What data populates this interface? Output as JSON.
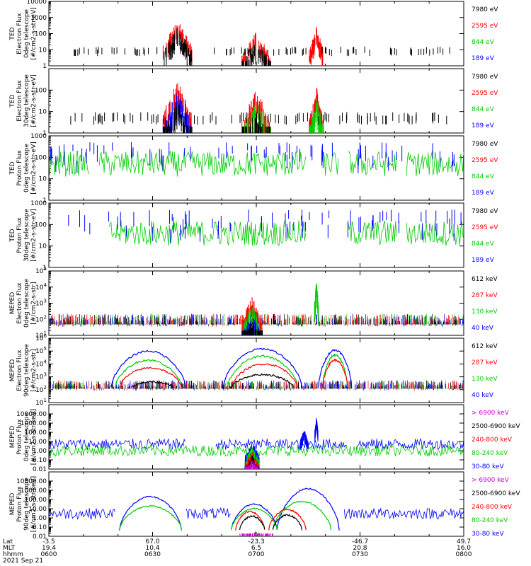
{
  "chart_data": {
    "type": "line",
    "x_tick_labels": {
      "row_labels": [
        "Lat",
        "MLT",
        "hhmm"
      ],
      "lat": [
        "-3.5",
        "67.0",
        "-23.3",
        "-46.7",
        "49.7"
      ],
      "mlt": [
        "19.4",
        "10.4",
        "6.5",
        "20.8",
        "16.0"
      ],
      "hhmm": [
        "0600",
        "0630",
        "0700",
        "0730",
        "0800"
      ]
    },
    "date_label": "2021 Sep 21",
    "panels": [
      {
        "ylabel": [
          "TED",
          "Electron Flux",
          "0deg telescope",
          "[#/cm2-s-str-eV]"
        ],
        "yscale": "log",
        "ylim": [
          1,
          10000
        ],
        "y_tick_labels": [
          "1",
          "10",
          "100",
          "1000",
          "10000"
        ],
        "legend": [
          {
            "label": "7980 eV",
            "color": "#000000"
          },
          {
            "label": "2595 eV",
            "color": "#ff0000"
          },
          {
            "label": "844 eV",
            "color": "#00cc00"
          },
          {
            "label": "189 eV",
            "color": "#0000ff"
          }
        ],
        "bursts": [
          {
            "center": 0.31,
            "width": 0.07,
            "peak": 800,
            "colors": [
              "#ff0000",
              "#000000"
            ]
          },
          {
            "center": 0.5,
            "width": 0.07,
            "peak": 150,
            "colors": [
              "#ff0000",
              "#000000"
            ]
          },
          {
            "center": 0.645,
            "width": 0.035,
            "peak": 300,
            "colors": [
              "#ff0000"
            ]
          }
        ],
        "sparse_color": "#000000",
        "sparse_level": 10
      },
      {
        "ylabel": [
          "TED",
          "Electron Flux",
          "30deg telescope",
          "[#/cm2-s-str-eV]"
        ],
        "yscale": "log",
        "ylim": [
          1,
          1000
        ],
        "y_tick_labels": [
          "1",
          "10",
          "100"
        ],
        "legend": [
          {
            "label": "7980 eV",
            "color": "#000000"
          },
          {
            "label": "2595 eV",
            "color": "#ff0000"
          },
          {
            "label": "844 eV",
            "color": "#00cc00"
          },
          {
            "label": "189 eV",
            "color": "#0000ff"
          }
        ],
        "bursts": [
          {
            "center": 0.31,
            "width": 0.07,
            "peak": 300,
            "colors": [
              "#ff0000",
              "#0000ff",
              "#000000"
            ]
          },
          {
            "center": 0.5,
            "width": 0.07,
            "peak": 120,
            "colors": [
              "#ff0000",
              "#00cc00",
              "#000000"
            ]
          },
          {
            "center": 0.645,
            "width": 0.035,
            "peak": 150,
            "colors": [
              "#ff0000",
              "#00cc00"
            ]
          }
        ],
        "sparse_color": "#000000",
        "sparse_level": 6
      },
      {
        "ylabel": [
          "TED",
          "Proton Flux",
          "0deg telescope",
          "[#/cm2-s-str-eV]"
        ],
        "yscale": "log",
        "ylim": [
          1,
          1000
        ],
        "y_tick_labels": [
          "1",
          "10",
          "100",
          "1000"
        ],
        "legend": [
          {
            "label": "7980 eV",
            "color": "#000000"
          },
          {
            "label": "2595 eV",
            "color": "#ff0000"
          },
          {
            "label": "844 eV",
            "color": "#00cc00"
          },
          {
            "label": "189 eV",
            "color": "#0000ff"
          }
        ],
        "continuous": [
          {
            "color": "#00cc00",
            "level": 50,
            "gaps": [
              [
                0.1,
                0.12
              ],
              [
                0.62,
                0.66
              ],
              [
                0.7,
                0.72
              ],
              [
                0.84,
                0.86
              ]
            ]
          },
          {
            "color": "#0000ff",
            "level": 150,
            "sparse": true
          }
        ]
      },
      {
        "ylabel": [
          "TED",
          "Proton Flux",
          "30deg telescope",
          "[#/cm2-s-str-eV]"
        ],
        "yscale": "log",
        "ylim": [
          1,
          1000
        ],
        "y_tick_labels": [
          "1",
          "10",
          "100",
          "1000"
        ],
        "legend": [
          {
            "label": "7980 eV",
            "color": "#000000"
          },
          {
            "label": "2595 eV",
            "color": "#ff0000"
          },
          {
            "label": "844 eV",
            "color": "#00cc00"
          },
          {
            "label": "189 eV",
            "color": "#0000ff"
          }
        ],
        "continuous": [
          {
            "color": "#00cc00",
            "level": 40,
            "gaps": [
              [
                0.0,
                0.145
              ],
              [
                0.62,
                0.72
              ],
              [
                0.84,
                0.86
              ]
            ]
          },
          {
            "color": "#0000ff",
            "level": 150,
            "sparse": true
          }
        ]
      },
      {
        "ylabel": [
          "MEPED",
          "Electron Flux",
          "0deg telescope",
          "[#/cm2-s-str]"
        ],
        "yscale": "log",
        "ylim": [
          10,
          100000
        ],
        "y_tick_labels": [
          "10^1",
          "10^2",
          "10^3",
          "10^4",
          "10^5"
        ],
        "legend": [
          {
            "label": "612 keV",
            "color": "#000000"
          },
          {
            "label": "287 keV",
            "color": "#ff0000"
          },
          {
            "label": "130 keV",
            "color": "#00cc00"
          },
          {
            "label": "40 keV",
            "color": "#0000ff"
          }
        ],
        "noise_floor": 60,
        "bursts": [
          {
            "center": 0.49,
            "width": 0.05,
            "peak": 3000,
            "colors": [
              "#ff0000",
              "#00cc00",
              "#0000ff",
              "#000000"
            ]
          },
          {
            "center": 0.645,
            "width": 0.01,
            "peak": 30000,
            "colors": [
              "#00cc00"
            ]
          }
        ]
      },
      {
        "ylabel": [
          "MEPED",
          "Electron Flux",
          "90deg telescope",
          "[#/cm2-s-str]"
        ],
        "yscale": "log",
        "ylim": [
          10,
          1000000
        ],
        "y_tick_labels": [
          "10^1",
          "10^2",
          "10^3",
          "10^4",
          "10^5",
          "10^6"
        ],
        "legend": [
          {
            "label": "612 keV",
            "color": "#000000"
          },
          {
            "label": "287 keV",
            "color": "#ff0000"
          },
          {
            "label": "130 keV",
            "color": "#00cc00"
          },
          {
            "label": "40 keV",
            "color": "#0000ff"
          }
        ],
        "noise_floor": 150,
        "humps": [
          {
            "color": "#0000ff",
            "ranges": [
              [
                0.15,
                0.33,
                100000
              ],
              [
                0.42,
                0.61,
                150000
              ],
              [
                0.65,
                0.73,
                120000
              ]
            ]
          },
          {
            "color": "#00cc00",
            "ranges": [
              [
                0.16,
                0.32,
                20000
              ],
              [
                0.43,
                0.6,
                40000
              ],
              [
                0.66,
                0.72,
                50000
              ]
            ]
          },
          {
            "color": "#ff0000",
            "ranges": [
              [
                0.17,
                0.32,
                5000
              ],
              [
                0.44,
                0.6,
                10000
              ],
              [
                0.66,
                0.72,
                20000
              ]
            ]
          },
          {
            "color": "#000000",
            "ranges": [
              [
                0.2,
                0.3,
                400
              ],
              [
                0.44,
                0.59,
                1500
              ]
            ]
          }
        ]
      },
      {
        "ylabel": [
          "MEPED",
          "Proton Flux",
          "0deg telescope",
          "[#/cm2-s-str-keV]"
        ],
        "yscale": "log",
        "ylim": [
          0.01,
          100000
        ],
        "y_tick_labels": [
          "0.01",
          "0.10",
          "1.00",
          "10.00",
          "100.00",
          "1000.00",
          "10000.00"
        ],
        "legend": [
          {
            "label": "> 6900 keV",
            "color": "#cc00cc"
          },
          {
            "label": "2500-6900 keV",
            "color": "#000000"
          },
          {
            "label": "240-800 keV",
            "color": "#ff0000"
          },
          {
            "label": "80-240 keV",
            "color": "#00cc00"
          },
          {
            "label": "30-80 keV",
            "color": "#0000ff"
          }
        ],
        "continuous": [
          {
            "color": "#0000ff",
            "level": 5,
            "gaps": [
              [
                0.33,
                0.4
              ],
              [
                0.72,
                0.74
              ]
            ]
          },
          {
            "color": "#00cc00",
            "level": 1,
            "gaps": []
          }
        ],
        "bursts": [
          {
            "center": 0.49,
            "width": 0.035,
            "peak": 10,
            "colors": [
              "#0000ff",
              "#00cc00",
              "#ff0000",
              "#000000",
              "#cc00cc"
            ]
          },
          {
            "center": 0.615,
            "width": 0.02,
            "peak": 300,
            "colors": [
              "#0000ff"
            ]
          },
          {
            "center": 0.645,
            "width": 0.008,
            "peak": 5000,
            "colors": [
              "#0000ff"
            ]
          }
        ]
      },
      {
        "ylabel": [
          "MEPED",
          "Proton Flux",
          "90deg telescope",
          "[#/cm2-s-str-keV]"
        ],
        "yscale": "log",
        "ylim": [
          0.01,
          100000
        ],
        "y_tick_labels": [
          "0.01",
          "0.10",
          "1.00",
          "10.00",
          "100.00",
          "1000.00",
          "10000.00"
        ],
        "legend": [
          {
            "label": "> 6900 keV",
            "color": "#cc00cc"
          },
          {
            "label": "2500-6900 keV",
            "color": "#000000"
          },
          {
            "label": "240-800 keV",
            "color": "#ff0000"
          },
          {
            "label": "80-240 keV",
            "color": "#00cc00"
          },
          {
            "label": "30-80 keV",
            "color": "#0000ff"
          }
        ],
        "humps": [
          {
            "color": "#0000ff",
            "ranges": [
              [
                0.17,
                0.32,
                200
              ],
              [
                0.44,
                0.55,
                30
              ],
              [
                0.55,
                0.7,
                1500
              ]
            ]
          },
          {
            "color": "#00cc00",
            "ranges": [
              [
                0.17,
                0.32,
                20
              ],
              [
                0.44,
                0.55,
                10
              ],
              [
                0.54,
                0.68,
                60
              ]
            ]
          },
          {
            "color": "#ff0000",
            "ranges": [
              [
                0.45,
                0.52,
                5
              ],
              [
                0.53,
                0.62,
                8
              ]
            ]
          },
          {
            "color": "#000000",
            "ranges": [
              [
                0.46,
                0.52,
                1.5
              ],
              [
                0.54,
                0.61,
                2
              ]
            ]
          }
        ],
        "continuous": [
          {
            "color": "#0000ff",
            "level": 3,
            "gaps": [
              [
                0.16,
                0.33
              ],
              [
                0.44,
                0.71
              ]
            ]
          }
        ],
        "bursts": [
          {
            "center": 0.5,
            "width": 0.08,
            "peak": 0.05,
            "colors": [
              "#cc00cc"
            ]
          }
        ]
      }
    ]
  }
}
